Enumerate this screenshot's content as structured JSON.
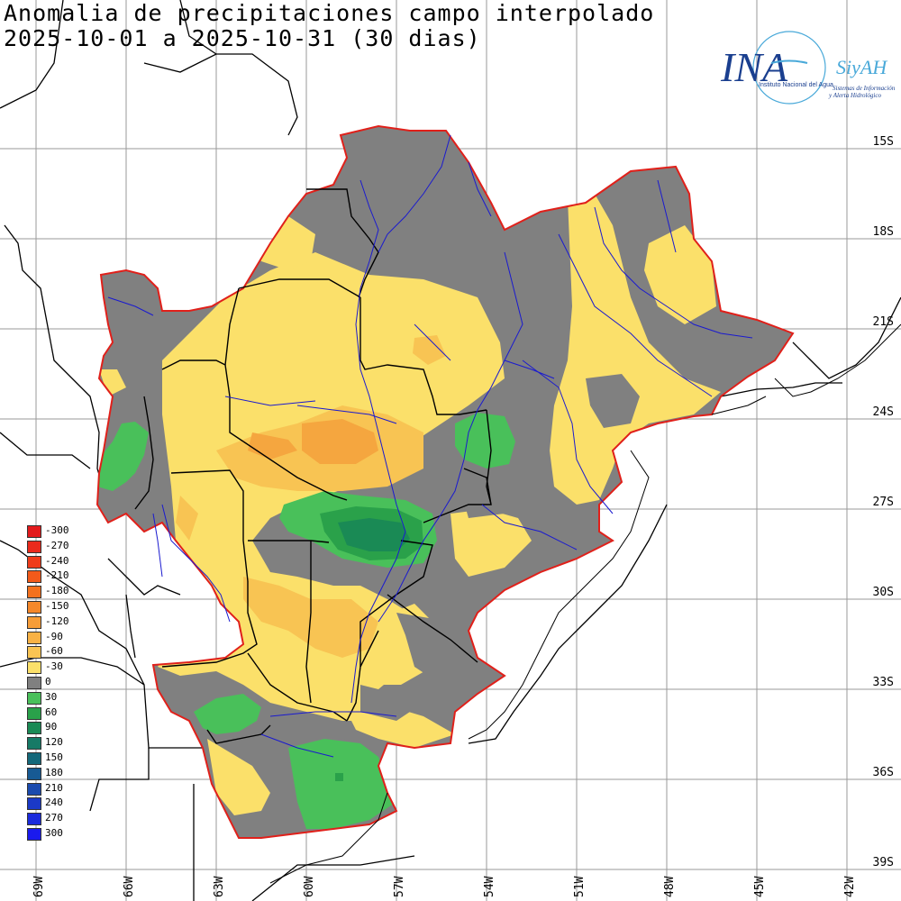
{
  "title": {
    "line1": "Anomalia de precipitaciones campo interpolado",
    "line2": "2025-10-01 a 2025-10-31 (30 dias)"
  },
  "logo": {
    "main": "INA",
    "brand": "SiyAH",
    "sub1": "Instituto Nacional del Agua",
    "sub2": "Sistemas de Información",
    "sub3": "y Alerta Hidrológico",
    "colors": {
      "blue": "#1a3f8f",
      "light": "#49a9d9"
    }
  },
  "lat_labels": [
    "15S",
    "18S",
    "21S",
    "24S",
    "27S",
    "30S",
    "33S",
    "36S",
    "39S"
  ],
  "lon_labels": [
    "69W",
    "66W",
    "63W",
    "60W",
    "57W",
    "54W",
    "51W",
    "48W",
    "45W",
    "42W"
  ],
  "legend": [
    {
      "label": "-300",
      "color": "#e31a1c"
    },
    {
      "label": "-270",
      "color": "#ea2a1c"
    },
    {
      "label": "-240",
      "color": "#ef3b19"
    },
    {
      "label": "-210",
      "color": "#f25a1a"
    },
    {
      "label": "-180",
      "color": "#f4711d"
    },
    {
      "label": "-150",
      "color": "#f5882a"
    },
    {
      "label": "-120",
      "color": "#f79d38"
    },
    {
      "label": "-90",
      "color": "#f8b245"
    },
    {
      "label": "-60",
      "color": "#f9c453"
    },
    {
      "label": "-30",
      "color": "#fbe06a"
    },
    {
      "label": "0",
      "color": "#808080"
    },
    {
      "label": "30",
      "color": "#49c05a"
    },
    {
      "label": "60",
      "color": "#2aa14a"
    },
    {
      "label": "90",
      "color": "#1a8a55"
    },
    {
      "label": "120",
      "color": "#167a66"
    },
    {
      "label": "150",
      "color": "#14687a"
    },
    {
      "label": "180",
      "color": "#175a94"
    },
    {
      "label": "210",
      "color": "#1a4aae"
    },
    {
      "label": "240",
      "color": "#1b39c6"
    },
    {
      "label": "270",
      "color": "#1b2bdc"
    },
    {
      "label": "300",
      "color": "#1a1aee"
    }
  ],
  "map_colors": {
    "gray": "#808080",
    "yellow": "#fbe06a",
    "light_orange": "#f8c453",
    "orange": "#f5a63f",
    "green": "#49c05a",
    "mid_green": "#2aa14a",
    "dark_green": "#1a8a55",
    "basin_border": "#e0201a",
    "rivers": "#1a1acf",
    "country_borders": "#000000"
  }
}
